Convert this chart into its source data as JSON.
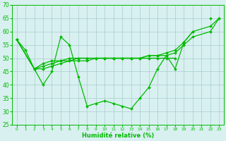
{
  "xlabel": "Humidité relative (%)",
  "background_color": "#d8f0f0",
  "grid_color": "#aacccc",
  "line_color": "#00bb00",
  "ylim": [
    25,
    70
  ],
  "yticks": [
    25,
    30,
    35,
    40,
    45,
    50,
    55,
    60,
    65,
    70
  ],
  "lAx": [
    0,
    1,
    2,
    3,
    4,
    5,
    6,
    7,
    8,
    9,
    10,
    11,
    12,
    13,
    14,
    15,
    16,
    17,
    18,
    19,
    20,
    21,
    22,
    23
  ],
  "lAy": [
    57,
    53,
    46,
    40,
    45,
    58,
    55,
    43,
    32,
    33,
    34,
    33,
    32,
    31,
    35,
    39,
    46,
    51,
    46,
    56,
    60,
    null,
    65,
    null
  ],
  "lBx": [
    0,
    2,
    3,
    4,
    5,
    6,
    7,
    8,
    9,
    10,
    11,
    12,
    13,
    14,
    15,
    16,
    17,
    18,
    19,
    20,
    22,
    23
  ],
  "lBy": [
    57,
    46,
    46,
    47,
    48,
    49,
    49,
    49,
    50,
    50,
    50,
    50,
    50,
    50,
    51,
    51,
    52,
    53,
    56,
    60,
    62,
    65
  ],
  "lCx": [
    0,
    2,
    3,
    4,
    5,
    6,
    7,
    8,
    9,
    10,
    11,
    12,
    13,
    14,
    15,
    16,
    17,
    18,
    19,
    20,
    22,
    23
  ],
  "lCy": [
    57,
    46,
    47,
    48,
    49,
    49,
    50,
    50,
    50,
    50,
    50,
    50,
    50,
    50,
    51,
    51,
    51,
    52,
    55,
    58,
    60,
    65
  ],
  "lDx": [
    0,
    2,
    3,
    4,
    5,
    6,
    7,
    8,
    9,
    10,
    11,
    12,
    13,
    14,
    15,
    16,
    17,
    18
  ],
  "lDy": [
    57,
    46,
    48,
    49,
    49,
    50,
    50,
    50,
    50,
    50,
    50,
    50,
    50,
    50,
    50,
    50,
    50,
    50
  ]
}
